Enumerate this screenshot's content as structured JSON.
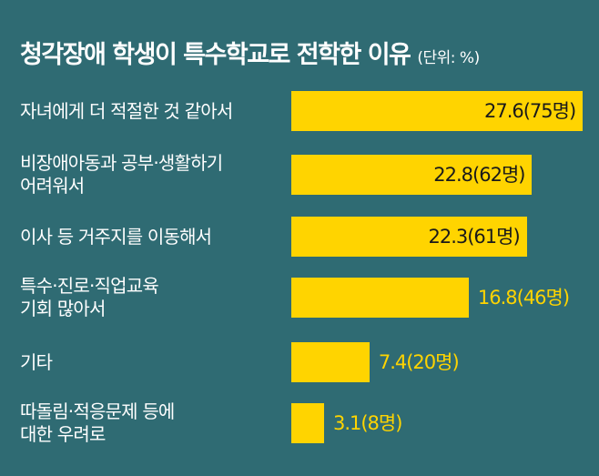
{
  "chart_data": {
    "type": "bar",
    "orientation": "horizontal",
    "title": "청각장애 학생이 특수학교로 전학한 이유",
    "unit_label": "(단위: %)",
    "categories": [
      "자녀에게 더 적절한 것 같아서",
      "비장애아동과 공부·생활하기\n어려워서",
      "이사 등 거주지를 이동해서",
      "특수·진로·직업교육\n기회 많아서",
      "기타",
      "따돌림·적응문제 등에\n대한 우려로"
    ],
    "values": [
      27.6,
      22.8,
      22.3,
      16.8,
      7.4,
      3.1
    ],
    "value_labels": [
      "27.6(75명)",
      "22.8(62명)",
      "22.3(61명)",
      "16.8(46명)",
      "7.4(20명)",
      "3.1(8명)"
    ],
    "bar_color": "#ffd400",
    "background_color": "#2f6b73",
    "grid": false,
    "legend": "none"
  }
}
